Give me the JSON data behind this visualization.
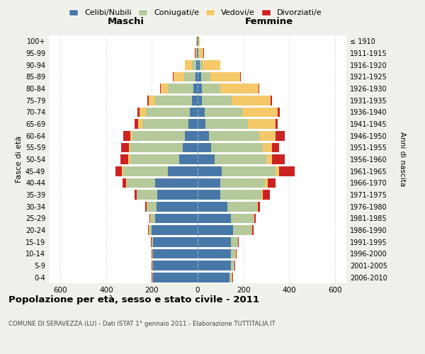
{
  "age_groups": [
    "0-4",
    "5-9",
    "10-14",
    "15-19",
    "20-24",
    "25-29",
    "30-34",
    "35-39",
    "40-44",
    "45-49",
    "50-54",
    "55-59",
    "60-64",
    "65-69",
    "70-74",
    "75-79",
    "80-84",
    "85-89",
    "90-94",
    "95-99",
    "100+"
  ],
  "birth_years": [
    "2006-2010",
    "2001-2005",
    "1996-2000",
    "1991-1995",
    "1986-1990",
    "1981-1985",
    "1976-1980",
    "1971-1975",
    "1966-1970",
    "1961-1965",
    "1956-1960",
    "1951-1955",
    "1946-1950",
    "1941-1945",
    "1936-1940",
    "1931-1935",
    "1926-1930",
    "1921-1925",
    "1916-1920",
    "1911-1915",
    "≤ 1910"
  ],
  "male": {
    "celibi": [
      195,
      195,
      195,
      195,
      200,
      185,
      180,
      175,
      185,
      130,
      80,
      65,
      55,
      40,
      35,
      25,
      20,
      10,
      5,
      2,
      2
    ],
    "coniugati": [
      2,
      2,
      2,
      5,
      10,
      20,
      40,
      90,
      125,
      195,
      215,
      230,
      230,
      200,
      190,
      160,
      110,
      50,
      20,
      3,
      2
    ],
    "vedovi": [
      2,
      2,
      2,
      2,
      3,
      3,
      3,
      2,
      3,
      5,
      8,
      5,
      10,
      20,
      30,
      30,
      30,
      45,
      30,
      5,
      2
    ],
    "divorziati": [
      1,
      1,
      1,
      2,
      3,
      3,
      5,
      10,
      15,
      30,
      35,
      35,
      30,
      15,
      8,
      5,
      5,
      3,
      2,
      1,
      1
    ]
  },
  "female": {
    "nubili": [
      140,
      145,
      145,
      145,
      155,
      145,
      130,
      100,
      100,
      105,
      75,
      60,
      50,
      35,
      30,
      20,
      20,
      15,
      8,
      3,
      2
    ],
    "coniugate": [
      10,
      15,
      20,
      30,
      80,
      100,
      130,
      180,
      195,
      235,
      225,
      225,
      220,
      185,
      165,
      130,
      80,
      40,
      15,
      3,
      2
    ],
    "vedove": [
      2,
      2,
      2,
      2,
      3,
      3,
      3,
      5,
      10,
      15,
      25,
      40,
      70,
      120,
      155,
      170,
      165,
      130,
      75,
      20,
      4
    ],
    "divorziate": [
      2,
      2,
      2,
      3,
      5,
      5,
      10,
      30,
      35,
      70,
      55,
      30,
      40,
      10,
      8,
      5,
      5,
      3,
      2,
      1,
      1
    ]
  },
  "colors": {
    "celibi": "#4878a8",
    "coniugati": "#b5c99a",
    "vedovi": "#f5c96a",
    "divorziati": "#cc2222"
  },
  "title": "Popolazione per età, sesso e stato civile - 2011",
  "subtitle": "COMUNE DI SERAVEZZA (LU) - Dati ISTAT 1° gennaio 2011 - Elaborazione TUTTITALIA.IT",
  "xlabel_left": "Maschi",
  "xlabel_right": "Femmine",
  "ylabel_left": "Fasce di età",
  "ylabel_right": "Anni di nascita",
  "xlim": 650,
  "background_color": "#f0f0eb",
  "plot_background": "#ffffff"
}
